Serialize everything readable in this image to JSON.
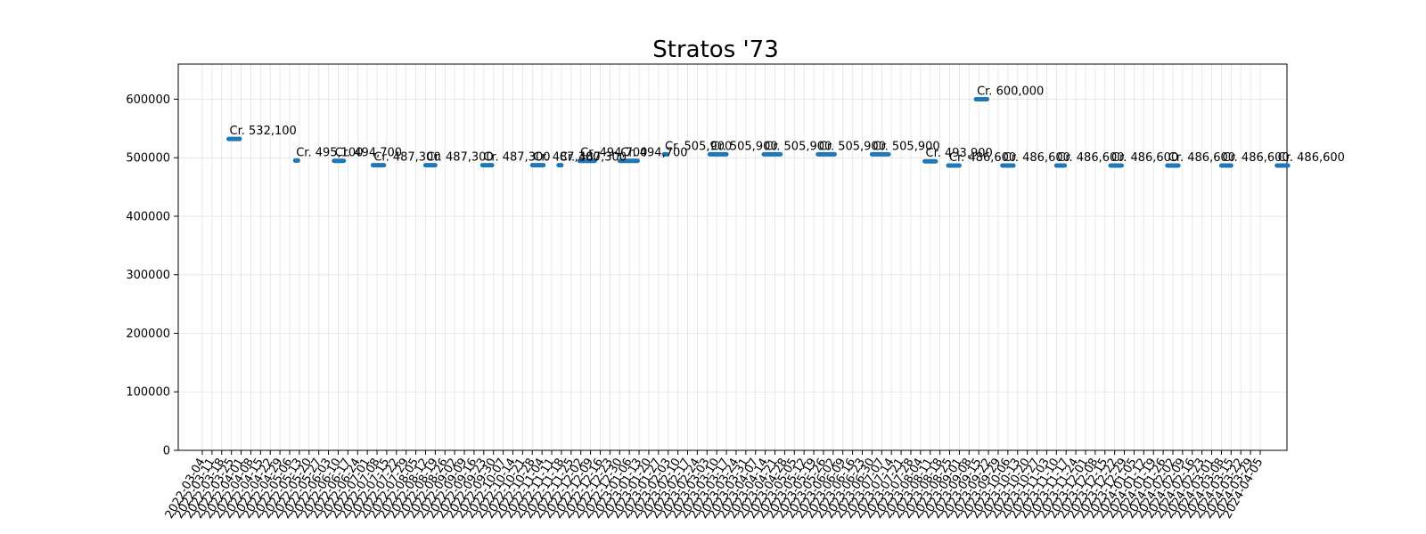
{
  "chart_data": {
    "type": "line",
    "title": "Stratos '73",
    "xlabel": "",
    "ylabel": "",
    "ylim": [
      0,
      660000
    ],
    "y_ticks": [
      0,
      100000,
      200000,
      300000,
      400000,
      500000,
      600000
    ],
    "grid": true,
    "color": "#1f77b4",
    "x_ticks": [
      "2022-03-04",
      "2022-03-11",
      "2022-03-18",
      "2022-03-25",
      "2022-04-01",
      "2022-04-08",
      "2022-04-15",
      "2022-04-22",
      "2022-04-29",
      "2022-05-06",
      "2022-05-13",
      "2022-05-20",
      "2022-05-27",
      "2022-06-03",
      "2022-06-10",
      "2022-06-17",
      "2022-06-24",
      "2022-07-01",
      "2022-07-08",
      "2022-07-15",
      "2022-07-22",
      "2022-07-29",
      "2022-08-05",
      "2022-08-12",
      "2022-08-19",
      "2022-08-26",
      "2022-09-02",
      "2022-09-09",
      "2022-09-16",
      "2022-09-23",
      "2022-09-30",
      "2022-10-07",
      "2022-10-14",
      "2022-10-21",
      "2022-10-28",
      "2022-11-04",
      "2022-11-11",
      "2022-11-18",
      "2022-11-25",
      "2022-12-02",
      "2022-12-09",
      "2022-12-16",
      "2022-12-23",
      "2022-12-30",
      "2023-01-06",
      "2023-01-13",
      "2023-01-20",
      "2023-01-27",
      "2023-02-03",
      "2023-02-10",
      "2023-02-17",
      "2023-02-24",
      "2023-03-03",
      "2023-03-10",
      "2023-03-17",
      "2023-03-24",
      "2023-03-31",
      "2023-04-07",
      "2023-04-14",
      "2023-04-21",
      "2023-04-28",
      "2023-05-05",
      "2023-05-12",
      "2023-05-19",
      "2023-05-26",
      "2023-06-02",
      "2023-06-09",
      "2023-06-16",
      "2023-06-23",
      "2023-06-30",
      "2023-07-07",
      "2023-07-14",
      "2023-07-21",
      "2023-07-28",
      "2023-08-04",
      "2023-08-11",
      "2023-08-18",
      "2023-08-25",
      "2023-09-01",
      "2023-09-08",
      "2023-09-15",
      "2023-09-22",
      "2023-09-29",
      "2023-10-06",
      "2023-10-13",
      "2023-10-20",
      "2023-10-27",
      "2023-11-03",
      "2023-11-10",
      "2023-11-17",
      "2023-11-24",
      "2023-12-01",
      "2023-12-08",
      "2023-12-15",
      "2023-12-22",
      "2023-12-29",
      "2024-01-05",
      "2024-01-12",
      "2024-01-19",
      "2024-01-26",
      "2024-02-02",
      "2024-02-09",
      "2024-02-16",
      "2024-02-23",
      "2024-03-01",
      "2024-03-08",
      "2024-03-15",
      "2024-03-22",
      "2024-03-29",
      "2024-04-05"
    ],
    "segments": [
      {
        "start": "2022-03-23",
        "end": "2022-03-31",
        "value": 532100,
        "label": "Cr. 532,100"
      },
      {
        "start": "2022-05-10",
        "end": "2022-05-12",
        "value": 495100,
        "label": "Cr. 495,100"
      },
      {
        "start": "2022-06-07",
        "end": "2022-06-14",
        "value": 494700,
        "label": "Cr. 494,700"
      },
      {
        "start": "2022-07-05",
        "end": "2022-07-13",
        "value": 487300,
        "label": "Cr. 487,300"
      },
      {
        "start": "2022-08-12",
        "end": "2022-08-19",
        "value": 487300,
        "label": "Cr. 487,300"
      },
      {
        "start": "2022-09-22",
        "end": "2022-09-29",
        "value": 487300,
        "label": "Cr. 487,300"
      },
      {
        "start": "2022-10-28",
        "end": "2022-11-05",
        "value": 487300,
        "label": "Cr. 487,300"
      },
      {
        "start": "2022-11-16",
        "end": "2022-11-18",
        "value": 487300,
        "label": "Cr. 487,300"
      },
      {
        "start": "2022-12-01",
        "end": "2022-12-12",
        "value": 494700,
        "label": "Cr. 494,700"
      },
      {
        "start": "2022-12-30",
        "end": "2023-01-12",
        "value": 494700,
        "label": "Cr. 494,700"
      },
      {
        "start": "2023-01-31",
        "end": "2023-02-02",
        "value": 505900,
        "label": "Cr. 505,900"
      },
      {
        "start": "2023-03-05",
        "end": "2023-03-17",
        "value": 505900,
        "label": "Cr. 505,900"
      },
      {
        "start": "2023-04-13",
        "end": "2023-04-25",
        "value": 505900,
        "label": "Cr. 505,900"
      },
      {
        "start": "2023-05-22",
        "end": "2023-06-03",
        "value": 505900,
        "label": "Cr. 505,900"
      },
      {
        "start": "2023-06-30",
        "end": "2023-07-12",
        "value": 505900,
        "label": "Cr. 505,900"
      },
      {
        "start": "2023-08-07",
        "end": "2023-08-15",
        "value": 493900,
        "label": "Cr. 493,900"
      },
      {
        "start": "2023-08-24",
        "end": "2023-09-01",
        "value": 486600,
        "label": "Cr. 486,600"
      },
      {
        "start": "2023-09-13",
        "end": "2023-09-21",
        "value": 600000,
        "label": "Cr. 600,000"
      },
      {
        "start": "2023-10-02",
        "end": "2023-10-10",
        "value": 486600,
        "label": "Cr. 486,600"
      },
      {
        "start": "2023-11-10",
        "end": "2023-11-16",
        "value": 486600,
        "label": "Cr. 486,600"
      },
      {
        "start": "2023-12-19",
        "end": "2023-12-27",
        "value": 486600,
        "label": "Cr. 486,600"
      },
      {
        "start": "2024-01-29",
        "end": "2024-02-06",
        "value": 486600,
        "label": "Cr. 486,600"
      },
      {
        "start": "2024-03-08",
        "end": "2024-03-15",
        "value": 486600,
        "label": "Cr. 486,600"
      },
      {
        "start": "2024-04-17",
        "end": "2024-04-25",
        "value": 486600,
        "label": "Cr. 486,600"
      }
    ]
  }
}
